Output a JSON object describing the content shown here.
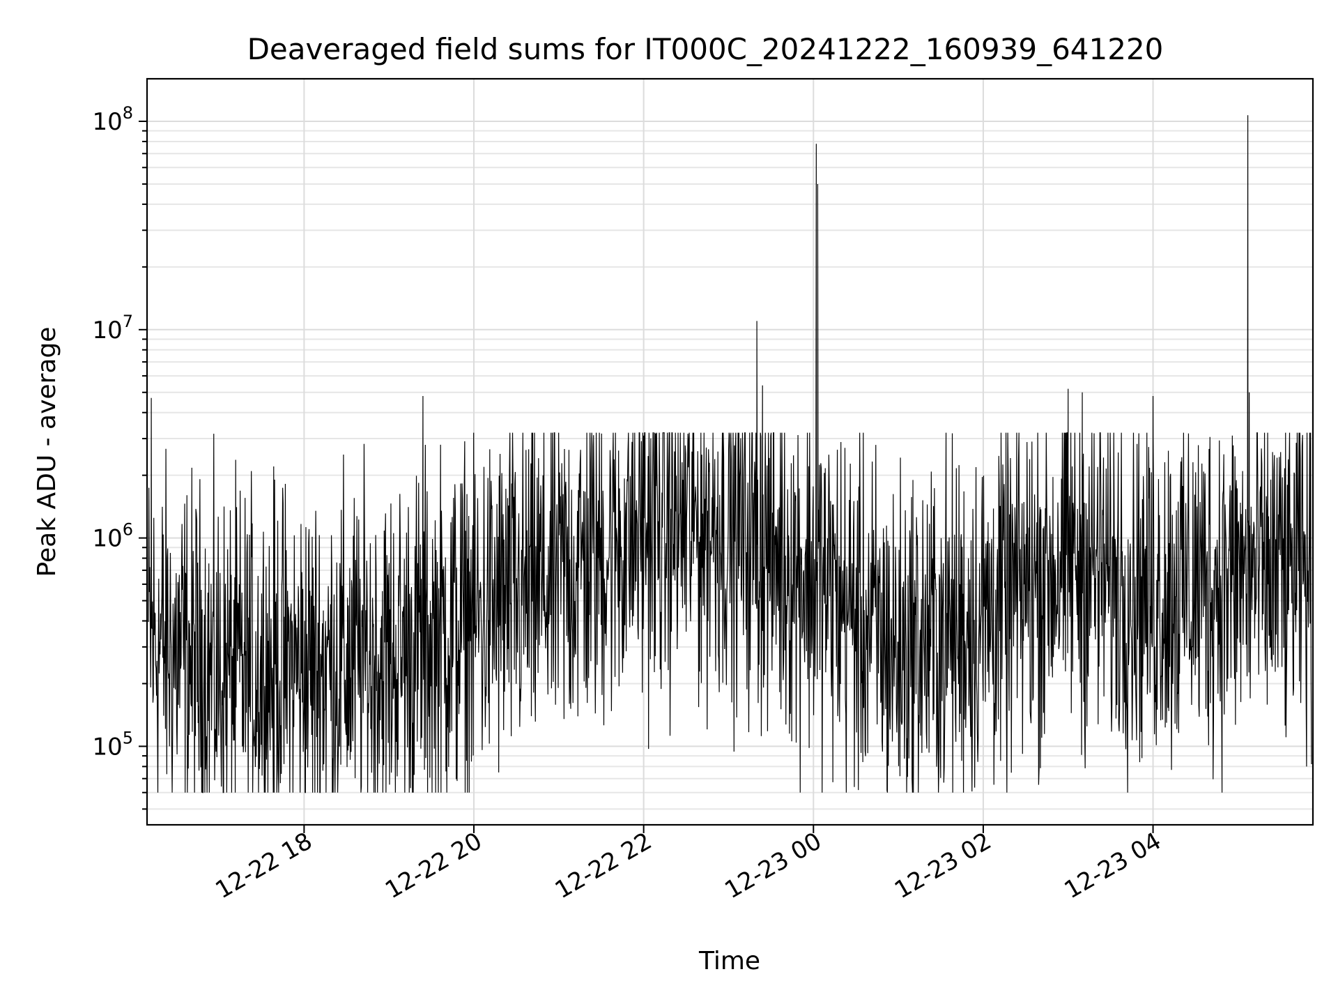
{
  "chart_data": {
    "type": "line",
    "title": "Deaveraged field sums for IT000C_20241222_160939_641220",
    "xlabel": "Time",
    "ylabel": "Peak ADU - average",
    "yscale": "log",
    "grid": true,
    "xlim": [
      "2024-12-22 16:09",
      "2024-12-23 05:53"
    ],
    "ylim": [
      42000,
      160000000
    ],
    "x_ticks": [
      {
        "t": "2024-12-22 18:00",
        "label": "12-22 18"
      },
      {
        "t": "2024-12-22 20:00",
        "label": "12-22 20"
      },
      {
        "t": "2024-12-22 22:00",
        "label": "12-22 22"
      },
      {
        "t": "2024-12-23 00:00",
        "label": "12-23 00"
      },
      {
        "t": "2024-12-23 02:00",
        "label": "12-23 02"
      },
      {
        "t": "2024-12-23 04:00",
        "label": "12-23 04"
      }
    ],
    "y_ticks": [
      {
        "value": 100000,
        "base": "10",
        "exp": "5"
      },
      {
        "value": 1000000,
        "base": "10",
        "exp": "6"
      },
      {
        "value": 10000000,
        "base": "10",
        "exp": "7"
      },
      {
        "value": 100000000,
        "base": "10",
        "exp": "8"
      }
    ],
    "series": [
      {
        "color": "#000000",
        "baseline": [
          [
            "2024-12-22 16:10",
            330000
          ],
          [
            "2024-12-22 17:00",
            220000
          ],
          [
            "2024-12-22 18:00",
            240000
          ],
          [
            "2024-12-22 19:00",
            260000
          ],
          [
            "2024-12-22 20:00",
            400000
          ],
          [
            "2024-12-22 21:00",
            650000
          ],
          [
            "2024-12-22 22:00",
            1150000
          ],
          [
            "2024-12-22 23:00",
            1200000
          ],
          [
            "2024-12-23 00:00",
            650000
          ],
          [
            "2024-12-23 01:00",
            280000
          ],
          [
            "2024-12-23 02:00",
            420000
          ],
          [
            "2024-12-23 03:00",
            800000
          ],
          [
            "2024-12-23 04:00",
            550000
          ],
          [
            "2024-12-23 05:00",
            650000
          ],
          [
            "2024-12-23 05:52",
            700000
          ]
        ],
        "spikes": [
          [
            "2024-12-22 16:12",
            4700000
          ],
          [
            "2024-12-22 19:24",
            4800000
          ],
          [
            "2024-12-22 22:00",
            3100000
          ],
          [
            "2024-12-22 23:20",
            11000000
          ],
          [
            "2024-12-22 23:24",
            5400000
          ],
          [
            "2024-12-23 00:02",
            78000000
          ],
          [
            "2024-12-23 00:03",
            50000000
          ],
          [
            "2024-12-23 03:00",
            5200000
          ],
          [
            "2024-12-23 03:10",
            5000000
          ],
          [
            "2024-12-23 04:00",
            4800000
          ],
          [
            "2024-12-23 05:07",
            107000000
          ],
          [
            "2024-12-23 05:08",
            5000000
          ]
        ]
      }
    ]
  }
}
